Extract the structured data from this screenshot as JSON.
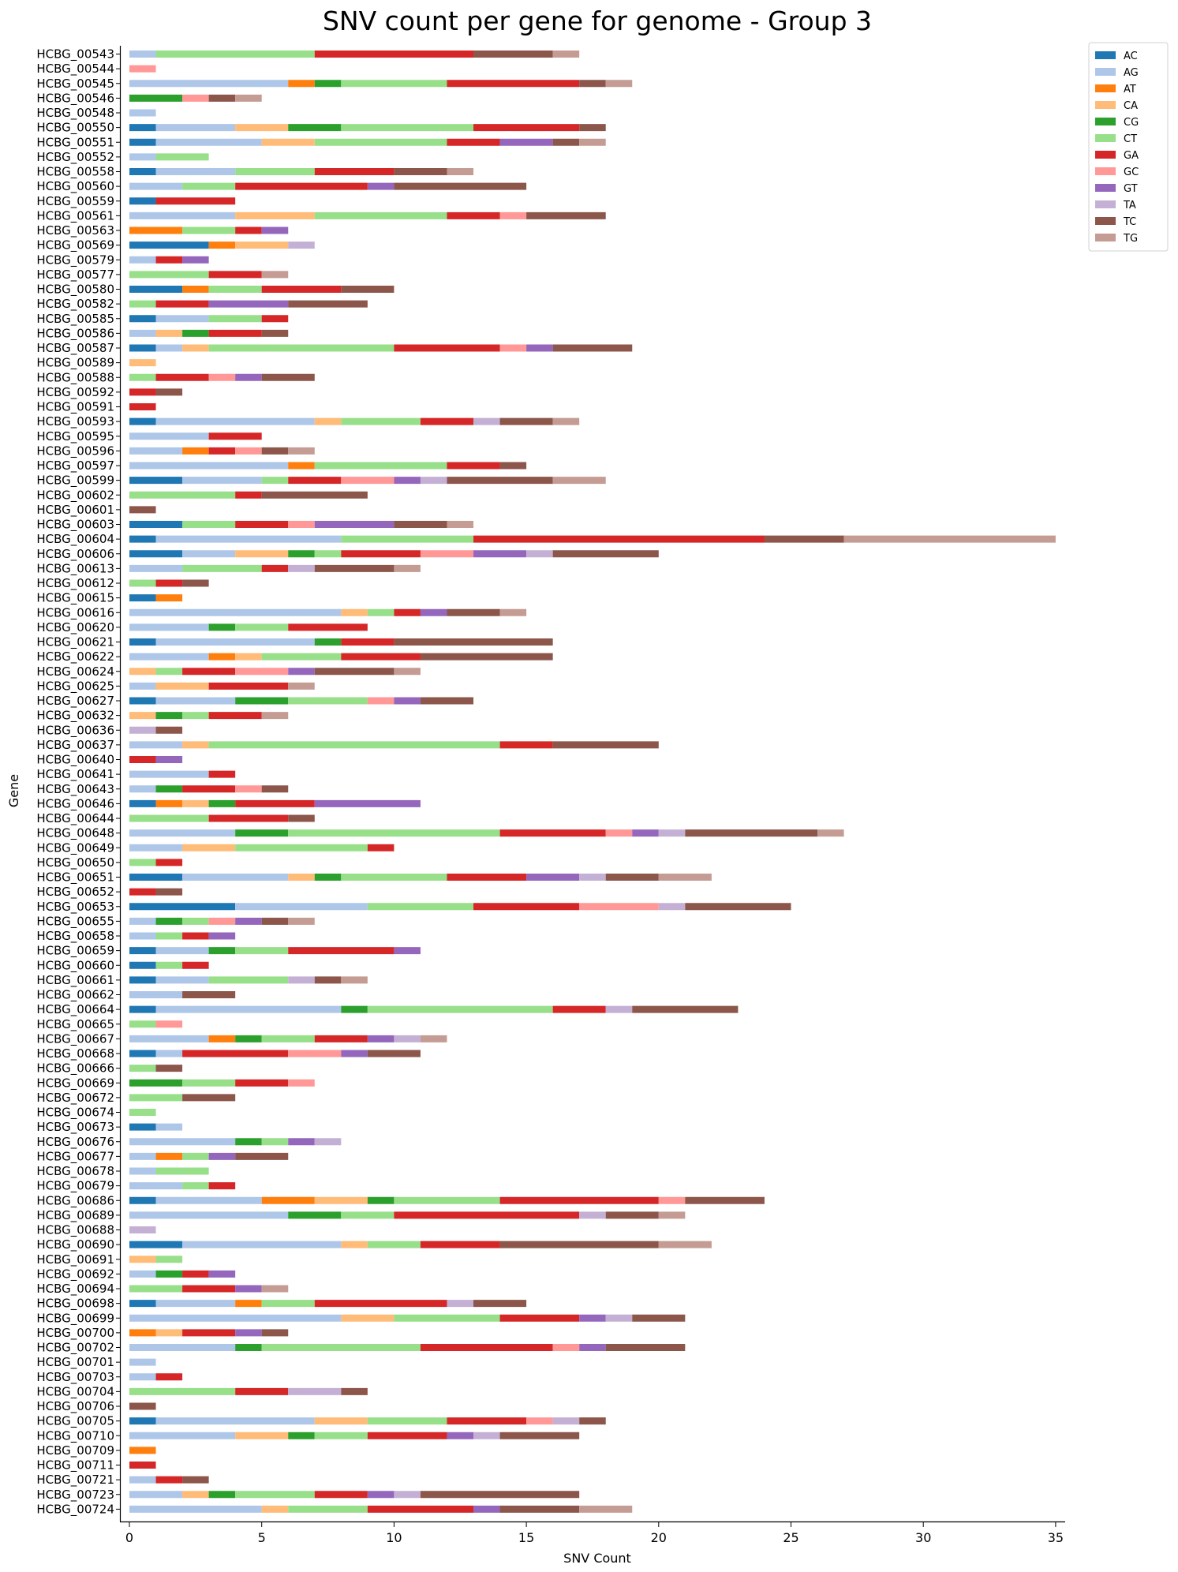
{
  "chart_data": {
    "type": "bar",
    "orientation": "horizontal",
    "stacked": true,
    "title": "SNV count per gene for genome - Group 3",
    "xlabel": "SNV Count",
    "ylabel": "Gene",
    "xlim": [
      0,
      35
    ],
    "xticks": [
      0,
      5,
      10,
      15,
      20,
      25,
      30,
      35
    ],
    "grid": false,
    "legend_position": "top-right",
    "series_names": [
      "AC",
      "AG",
      "AT",
      "CA",
      "CG",
      "CT",
      "GA",
      "GC",
      "GT",
      "TA",
      "TC",
      "TG"
    ],
    "series_colors": [
      "#1f77b4",
      "#aec7e8",
      "#ff7f0e",
      "#ffbb78",
      "#2ca02c",
      "#98df8a",
      "#d62728",
      "#ff9896",
      "#9467bd",
      "#c5b0d5",
      "#8c564b",
      "#c49c94"
    ],
    "categories": [
      "HCBG_00543",
      "HCBG_00544",
      "HCBG_00545",
      "HCBG_00546",
      "HCBG_00548",
      "HCBG_00550",
      "HCBG_00551",
      "HCBG_00552",
      "HCBG_00558",
      "HCBG_00560",
      "HCBG_00559",
      "HCBG_00561",
      "HCBG_00563",
      "HCBG_00569",
      "HCBG_00579",
      "HCBG_00577",
      "HCBG_00580",
      "HCBG_00582",
      "HCBG_00585",
      "HCBG_00586",
      "HCBG_00587",
      "HCBG_00589",
      "HCBG_00588",
      "HCBG_00592",
      "HCBG_00591",
      "HCBG_00593",
      "HCBG_00595",
      "HCBG_00596",
      "HCBG_00597",
      "HCBG_00599",
      "HCBG_00602",
      "HCBG_00601",
      "HCBG_00603",
      "HCBG_00604",
      "HCBG_00606",
      "HCBG_00613",
      "HCBG_00612",
      "HCBG_00615",
      "HCBG_00616",
      "HCBG_00620",
      "HCBG_00621",
      "HCBG_00622",
      "HCBG_00624",
      "HCBG_00625",
      "HCBG_00627",
      "HCBG_00632",
      "HCBG_00636",
      "HCBG_00637",
      "HCBG_00640",
      "HCBG_00641",
      "HCBG_00643",
      "HCBG_00646",
      "HCBG_00644",
      "HCBG_00648",
      "HCBG_00649",
      "HCBG_00650",
      "HCBG_00651",
      "HCBG_00652",
      "HCBG_00653",
      "HCBG_00655",
      "HCBG_00658",
      "HCBG_00659",
      "HCBG_00660",
      "HCBG_00661",
      "HCBG_00662",
      "HCBG_00664",
      "HCBG_00665",
      "HCBG_00667",
      "HCBG_00668",
      "HCBG_00666",
      "HCBG_00669",
      "HCBG_00672",
      "HCBG_00674",
      "HCBG_00673",
      "HCBG_00676",
      "HCBG_00677",
      "HCBG_00678",
      "HCBG_00679",
      "HCBG_00686",
      "HCBG_00689",
      "HCBG_00688",
      "HCBG_00690",
      "HCBG_00691",
      "HCBG_00692",
      "HCBG_00694",
      "HCBG_00698",
      "HCBG_00699",
      "HCBG_00700",
      "HCBG_00702",
      "HCBG_00701",
      "HCBG_00703",
      "HCBG_00704",
      "HCBG_00706",
      "HCBG_00705",
      "HCBG_00710",
      "HCBG_00709",
      "HCBG_00711",
      "HCBG_00721",
      "HCBG_00723",
      "HCBG_00724"
    ],
    "counts": [
      [
        0,
        1,
        0,
        0,
        0,
        6,
        6,
        0,
        0,
        0,
        3,
        1
      ],
      [
        0,
        0,
        0,
        0,
        0,
        0,
        0,
        1,
        0,
        0,
        0,
        0
      ],
      [
        0,
        6,
        1,
        0,
        1,
        4,
        5,
        0,
        0,
        0,
        1,
        1
      ],
      [
        0,
        0,
        0,
        0,
        2,
        0,
        0,
        1,
        0,
        0,
        1,
        1
      ],
      [
        0,
        1,
        0,
        0,
        0,
        0,
        0,
        0,
        0,
        0,
        0,
        0
      ],
      [
        1,
        3,
        0,
        2,
        2,
        5,
        4,
        0,
        0,
        0,
        1,
        0
      ],
      [
        1,
        4,
        0,
        2,
        0,
        5,
        2,
        0,
        2,
        0,
        1,
        1
      ],
      [
        0,
        1,
        0,
        0,
        0,
        2,
        0,
        0,
        0,
        0,
        0,
        0
      ],
      [
        1,
        3,
        0,
        0,
        0,
        3,
        3,
        0,
        0,
        0,
        2,
        1
      ],
      [
        0,
        2,
        0,
        0,
        0,
        2,
        5,
        0,
        1,
        0,
        5,
        0
      ],
      [
        1,
        0,
        0,
        0,
        0,
        0,
        3,
        0,
        0,
        0,
        0,
        0
      ],
      [
        0,
        4,
        0,
        3,
        0,
        5,
        2,
        1,
        0,
        0,
        3,
        0
      ],
      [
        0,
        0,
        2,
        0,
        0,
        2,
        1,
        0,
        1,
        0,
        0,
        0
      ],
      [
        3,
        0,
        1,
        2,
        0,
        0,
        0,
        0,
        0,
        1,
        0,
        0
      ],
      [
        0,
        1,
        0,
        0,
        0,
        0,
        1,
        0,
        1,
        0,
        0,
        0
      ],
      [
        0,
        0,
        0,
        0,
        0,
        3,
        2,
        0,
        0,
        0,
        0,
        1
      ],
      [
        2,
        0,
        1,
        0,
        0,
        2,
        3,
        0,
        0,
        0,
        2,
        0
      ],
      [
        0,
        0,
        0,
        0,
        0,
        1,
        2,
        0,
        3,
        0,
        3,
        0
      ],
      [
        1,
        2,
        0,
        0,
        0,
        2,
        1,
        0,
        0,
        0,
        0,
        0
      ],
      [
        0,
        1,
        0,
        1,
        1,
        0,
        2,
        0,
        0,
        0,
        1,
        0
      ],
      [
        1,
        1,
        0,
        1,
        0,
        7,
        4,
        1,
        1,
        0,
        3,
        0
      ],
      [
        0,
        0,
        0,
        1,
        0,
        0,
        0,
        0,
        0,
        0,
        0,
        0
      ],
      [
        0,
        0,
        0,
        0,
        0,
        1,
        2,
        1,
        1,
        0,
        2,
        0
      ],
      [
        0,
        0,
        0,
        0,
        0,
        0,
        1,
        0,
        0,
        0,
        1,
        0
      ],
      [
        0,
        0,
        0,
        0,
        0,
        0,
        1,
        0,
        0,
        0,
        0,
        0
      ],
      [
        1,
        6,
        0,
        1,
        0,
        3,
        2,
        0,
        0,
        1,
        2,
        1
      ],
      [
        0,
        3,
        0,
        0,
        0,
        0,
        2,
        0,
        0,
        0,
        0,
        0
      ],
      [
        0,
        2,
        1,
        0,
        0,
        0,
        1,
        1,
        0,
        0,
        1,
        1
      ],
      [
        0,
        6,
        1,
        0,
        0,
        5,
        2,
        0,
        0,
        0,
        1,
        0
      ],
      [
        2,
        3,
        0,
        0,
        0,
        1,
        2,
        2,
        1,
        1,
        4,
        2
      ],
      [
        0,
        0,
        0,
        0,
        0,
        4,
        1,
        0,
        0,
        0,
        4,
        0
      ],
      [
        0,
        0,
        0,
        0,
        0,
        0,
        0,
        0,
        0,
        0,
        1,
        0
      ],
      [
        2,
        0,
        0,
        0,
        0,
        2,
        2,
        1,
        3,
        0,
        2,
        1
      ],
      [
        1,
        7,
        0,
        0,
        0,
        5,
        11,
        0,
        0,
        0,
        3,
        8
      ],
      [
        2,
        2,
        0,
        2,
        1,
        1,
        3,
        2,
        2,
        1,
        4,
        0
      ],
      [
        0,
        2,
        0,
        0,
        0,
        3,
        1,
        0,
        0,
        1,
        3,
        1
      ],
      [
        0,
        0,
        0,
        0,
        0,
        1,
        1,
        0,
        0,
        0,
        1,
        0
      ],
      [
        1,
        0,
        1,
        0,
        0,
        0,
        0,
        0,
        0,
        0,
        0,
        0
      ],
      [
        0,
        8,
        0,
        1,
        0,
        1,
        1,
        0,
        1,
        0,
        2,
        1
      ],
      [
        0,
        3,
        0,
        0,
        1,
        2,
        3,
        0,
        0,
        0,
        0,
        0
      ],
      [
        1,
        6,
        0,
        0,
        1,
        0,
        2,
        0,
        0,
        0,
        6,
        0
      ],
      [
        0,
        3,
        1,
        1,
        0,
        3,
        3,
        0,
        0,
        0,
        5,
        0
      ],
      [
        0,
        0,
        0,
        1,
        0,
        1,
        2,
        2,
        1,
        0,
        3,
        1
      ],
      [
        0,
        1,
        0,
        2,
        0,
        0,
        3,
        0,
        0,
        0,
        0,
        1
      ],
      [
        1,
        3,
        0,
        0,
        2,
        3,
        0,
        1,
        1,
        0,
        2,
        0
      ],
      [
        0,
        0,
        0,
        1,
        1,
        1,
        2,
        0,
        0,
        0,
        0,
        1
      ],
      [
        0,
        0,
        0,
        0,
        0,
        0,
        0,
        0,
        0,
        1,
        1,
        0
      ],
      [
        0,
        2,
        0,
        1,
        0,
        11,
        2,
        0,
        0,
        0,
        4,
        0
      ],
      [
        0,
        0,
        0,
        0,
        0,
        0,
        1,
        0,
        1,
        0,
        0,
        0
      ],
      [
        0,
        3,
        0,
        0,
        0,
        0,
        1,
        0,
        0,
        0,
        0,
        0
      ],
      [
        0,
        1,
        0,
        0,
        1,
        0,
        2,
        1,
        0,
        0,
        1,
        0
      ],
      [
        1,
        0,
        1,
        1,
        1,
        0,
        3,
        0,
        4,
        0,
        0,
        0
      ],
      [
        0,
        0,
        0,
        0,
        0,
        3,
        3,
        0,
        0,
        0,
        1,
        0
      ],
      [
        0,
        4,
        0,
        0,
        2,
        8,
        4,
        1,
        1,
        1,
        5,
        1
      ],
      [
        0,
        2,
        0,
        2,
        0,
        5,
        1,
        0,
        0,
        0,
        0,
        0
      ],
      [
        0,
        0,
        0,
        0,
        0,
        1,
        1,
        0,
        0,
        0,
        0,
        0
      ],
      [
        2,
        4,
        0,
        1,
        1,
        4,
        3,
        0,
        2,
        1,
        2,
        2
      ],
      [
        0,
        0,
        0,
        0,
        0,
        0,
        1,
        0,
        0,
        0,
        1,
        0
      ],
      [
        4,
        5,
        0,
        0,
        0,
        4,
        4,
        3,
        0,
        1,
        4,
        0
      ],
      [
        0,
        1,
        0,
        0,
        1,
        1,
        0,
        1,
        1,
        0,
        1,
        1
      ],
      [
        0,
        1,
        0,
        0,
        0,
        1,
        1,
        0,
        1,
        0,
        0,
        0
      ],
      [
        1,
        2,
        0,
        0,
        1,
        2,
        4,
        0,
        1,
        0,
        0,
        0
      ],
      [
        1,
        0,
        0,
        0,
        0,
        1,
        1,
        0,
        0,
        0,
        0,
        0
      ],
      [
        1,
        2,
        0,
        0,
        0,
        3,
        0,
        0,
        0,
        1,
        1,
        1
      ],
      [
        0,
        2,
        0,
        0,
        0,
        0,
        0,
        0,
        0,
        0,
        2,
        0
      ],
      [
        1,
        7,
        0,
        0,
        1,
        7,
        2,
        0,
        0,
        1,
        4,
        0
      ],
      [
        0,
        0,
        0,
        0,
        0,
        1,
        0,
        1,
        0,
        0,
        0,
        0
      ],
      [
        0,
        3,
        1,
        0,
        1,
        2,
        2,
        0,
        1,
        1,
        0,
        1
      ],
      [
        1,
        1,
        0,
        0,
        0,
        0,
        4,
        2,
        1,
        0,
        2,
        0
      ],
      [
        0,
        0,
        0,
        0,
        0,
        1,
        0,
        0,
        0,
        0,
        1,
        0
      ],
      [
        0,
        0,
        0,
        0,
        2,
        2,
        2,
        1,
        0,
        0,
        0,
        0
      ],
      [
        0,
        0,
        0,
        0,
        0,
        2,
        0,
        0,
        0,
        0,
        2,
        0
      ],
      [
        0,
        0,
        0,
        0,
        0,
        1,
        0,
        0,
        0,
        0,
        0,
        0
      ],
      [
        1,
        1,
        0,
        0,
        0,
        0,
        0,
        0,
        0,
        0,
        0,
        0
      ],
      [
        0,
        4,
        0,
        0,
        1,
        1,
        0,
        0,
        1,
        1,
        0,
        0
      ],
      [
        0,
        1,
        1,
        0,
        0,
        1,
        0,
        0,
        1,
        0,
        2,
        0
      ],
      [
        0,
        1,
        0,
        0,
        0,
        2,
        0,
        0,
        0,
        0,
        0,
        0
      ],
      [
        0,
        2,
        0,
        0,
        0,
        1,
        1,
        0,
        0,
        0,
        0,
        0
      ],
      [
        1,
        4,
        2,
        2,
        1,
        4,
        6,
        1,
        0,
        0,
        3,
        0
      ],
      [
        0,
        6,
        0,
        0,
        2,
        2,
        7,
        0,
        0,
        1,
        2,
        1
      ],
      [
        0,
        0,
        0,
        0,
        0,
        0,
        0,
        0,
        0,
        1,
        0,
        0
      ],
      [
        2,
        6,
        0,
        1,
        0,
        2,
        3,
        0,
        0,
        0,
        6,
        2
      ],
      [
        0,
        0,
        0,
        1,
        0,
        1,
        0,
        0,
        0,
        0,
        0,
        0
      ],
      [
        0,
        1,
        0,
        0,
        1,
        0,
        1,
        0,
        1,
        0,
        0,
        0
      ],
      [
        0,
        0,
        0,
        0,
        0,
        2,
        2,
        0,
        1,
        0,
        0,
        1
      ],
      [
        1,
        3,
        1,
        0,
        0,
        2,
        5,
        0,
        0,
        1,
        2,
        0
      ],
      [
        0,
        8,
        0,
        2,
        0,
        4,
        3,
        0,
        1,
        1,
        2,
        0
      ],
      [
        0,
        0,
        1,
        1,
        0,
        0,
        2,
        0,
        1,
        0,
        1,
        0
      ],
      [
        0,
        4,
        0,
        0,
        1,
        6,
        5,
        1,
        1,
        0,
        3,
        0
      ],
      [
        0,
        1,
        0,
        0,
        0,
        0,
        0,
        0,
        0,
        0,
        0,
        0
      ],
      [
        0,
        1,
        0,
        0,
        0,
        0,
        1,
        0,
        0,
        0,
        0,
        0
      ],
      [
        0,
        0,
        0,
        0,
        0,
        4,
        2,
        0,
        0,
        2,
        1,
        0
      ],
      [
        0,
        0,
        0,
        0,
        0,
        0,
        0,
        0,
        0,
        0,
        1,
        0
      ],
      [
        1,
        6,
        0,
        2,
        0,
        3,
        3,
        1,
        0,
        1,
        1,
        0
      ],
      [
        0,
        4,
        0,
        2,
        1,
        2,
        3,
        0,
        1,
        1,
        3,
        0
      ],
      [
        0,
        0,
        1,
        0,
        0,
        0,
        0,
        0,
        0,
        0,
        0,
        0
      ],
      [
        0,
        0,
        0,
        0,
        0,
        0,
        1,
        0,
        0,
        0,
        0,
        0
      ],
      [
        0,
        1,
        0,
        0,
        0,
        0,
        1,
        0,
        0,
        0,
        1,
        0
      ],
      [
        0,
        2,
        0,
        1,
        1,
        3,
        2,
        0,
        1,
        1,
        6,
        0
      ],
      [
        0,
        5,
        0,
        1,
        0,
        3,
        4,
        0,
        1,
        0,
        3,
        2
      ]
    ]
  }
}
